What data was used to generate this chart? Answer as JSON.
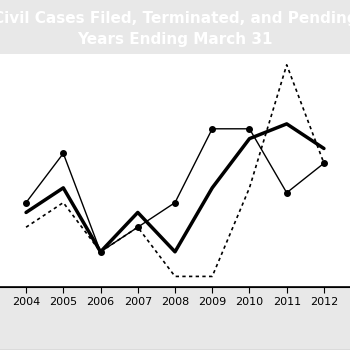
{
  "title_line1": "Civil Cases Filed, Terminated, and Pending",
  "title_line2": "Years Ending March 31",
  "title_bg": "#000000",
  "title_fg": "#ffffff",
  "years": [
    2004,
    2005,
    2006,
    2007,
    2008,
    2009,
    2010,
    2011,
    2012
  ],
  "filed": [
    58,
    63,
    50,
    58,
    50,
    63,
    73,
    76,
    71
  ],
  "terminated": [
    55,
    60,
    50,
    55,
    45,
    45,
    63,
    88,
    68
  ],
  "pending": [
    60,
    70,
    50,
    55,
    60,
    75,
    75,
    62,
    68
  ],
  "fig_color": "#e8e8e8",
  "plot_bg": "#ffffff",
  "xlim": [
    2003.3,
    2012.7
  ],
  "title_fontsize": 11,
  "legend_fontsize": 8,
  "tick_fontsize": 8
}
